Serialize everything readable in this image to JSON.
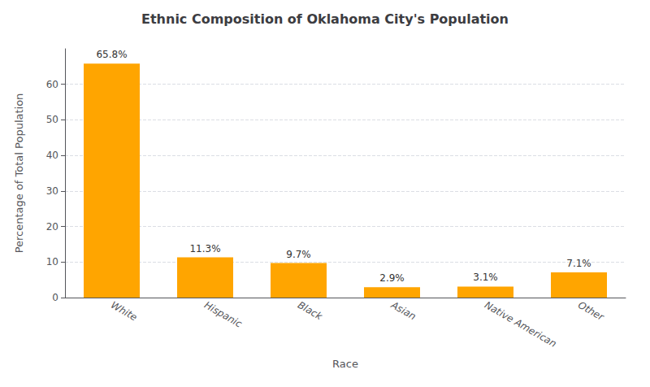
{
  "chart_data": {
    "type": "bar",
    "title": "Ethnic Composition of Oklahoma City's Population",
    "xlabel": "Race",
    "ylabel": "Percentage of Total Population",
    "categories": [
      "White",
      "Hispanic",
      "Black",
      "Asian",
      "Native American",
      "Other"
    ],
    "values": [
      65.8,
      11.3,
      9.7,
      2.9,
      3.1,
      7.1
    ],
    "value_labels": [
      "65.8%",
      "11.3%",
      "9.7%",
      "2.9%",
      "3.1%",
      "7.1%"
    ],
    "color": "#FFA500",
    "ylim": [
      0,
      70
    ],
    "yticks": [
      0,
      10,
      20,
      30,
      40,
      50,
      60
    ],
    "grid": true,
    "data_labels": true
  }
}
